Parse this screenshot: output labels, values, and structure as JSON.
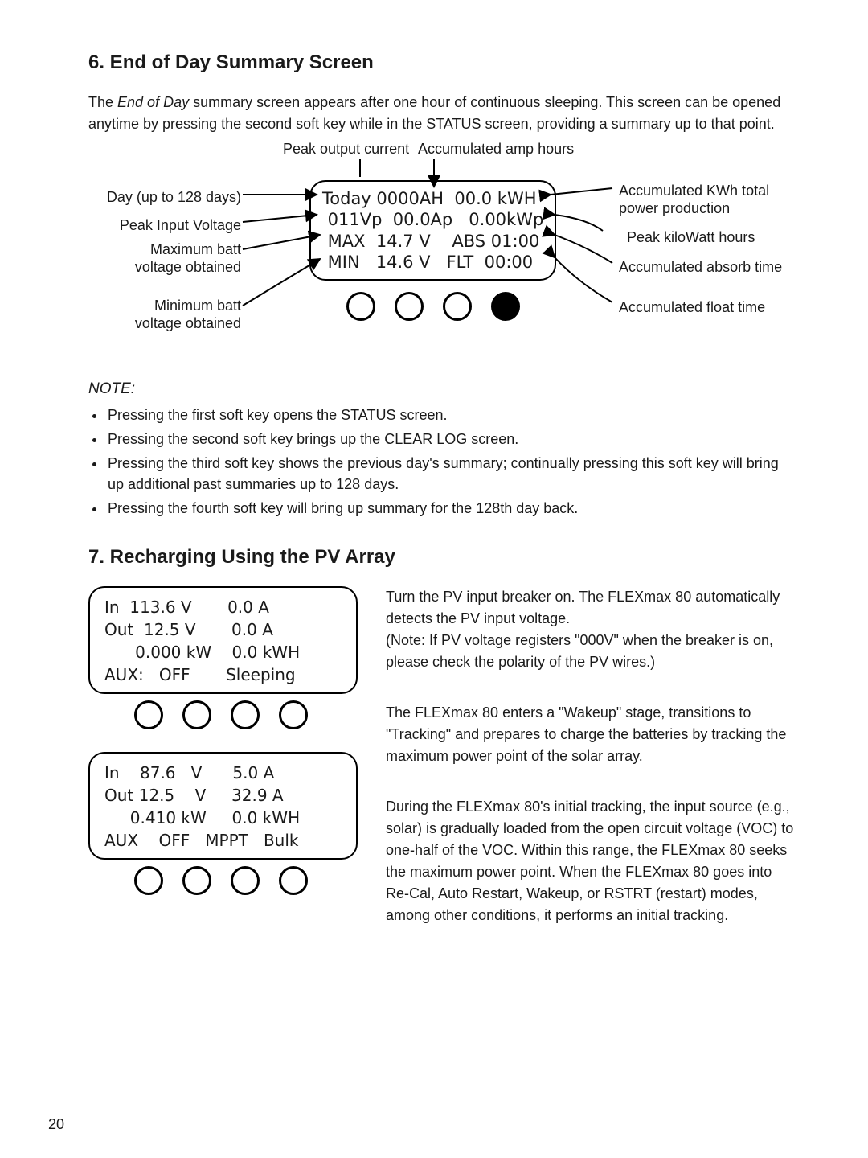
{
  "section6": {
    "title": "6. End of Day Summary Screen",
    "intro_html": "The <em>End of Day</em> summary screen appears after one hour of continuous sleeping. This screen can be opened anytime by pressing the second soft key while in the STATUS screen, providing a summary up to that point.",
    "top_labels": {
      "peak_output_current": "Peak output current",
      "accum_amp_hours": "Accumulated amp hours"
    },
    "lcd_lines": [
      "Today 0000AH  00.0 kWH",
      " 011Vp  00.0Ap   0.00kWp",
      " MAX  14.7 V    ABS 01:00",
      " MIN   14.6 V   FLT  00:00"
    ],
    "left_labels": {
      "day": "Day (up to 128 days)",
      "peak_input_v": "Peak Input Voltage",
      "max_batt": "Maximum batt",
      "max_batt2": "voltage obtained",
      "min_batt": "Minimum batt",
      "min_batt2": "voltage obtained"
    },
    "right_labels": {
      "acc_kwh": "Accumulated KWh total",
      "acc_kwh2": "power production",
      "peak_kw": "Peak kiloWatt hours",
      "acc_absorb": "Accumulated absorb time",
      "acc_float": "Accumulated float time"
    },
    "note_title": "NOTE:",
    "notes": [
      "Pressing the first soft key opens the STATUS screen.",
      "Pressing the second soft key brings up the CLEAR LOG screen.",
      "Pressing the third soft key shows the previous day's summary; continually pressing this soft key will bring up additional past summaries up to 128 days.",
      "Pressing the fourth soft key will bring up summary for the 128th day back."
    ]
  },
  "section7": {
    "title": "7. Recharging Using the PV Array",
    "lcd1": [
      "In  113.6 V       0.0 A  ",
      "Out  12.5 V       0.0 A  ",
      "      0.000 kW    0.0 kWH",
      "AUX:   OFF       Sleeping"
    ],
    "para1": "Turn the PV input breaker on. The FLEXmax 80 automatically detects the PV input voltage.\n(Note: If PV voltage registers \"000V\" when the breaker is on, please check the polarity of the PV wires.)",
    "para2": "The FLEXmax 80 enters a \"Wakeup\" stage, transitions to \"Tracking\" and prepares to charge the batteries by tracking the maximum power point of the solar array.",
    "lcd2": [
      "In    87.6   V      5.0 A",
      "Out 12.5    V     32.9 A ",
      "     0.410 kW     0.0 kWH",
      "AUX    OFF   MPPT   Bulk "
    ],
    "para3": "During the FLEXmax 80's initial tracking, the input source (e.g., solar) is gradually loaded from the open circuit voltage (VOC) to one-half of the VOC. Within this range, the FLEXmax 80 seeks the maximum power point. When the  FLEXmax 80 goes into Re-Cal, Auto Restart, Wakeup, or RSTRT (restart) modes, among other conditions, it performs an initial tracking."
  },
  "page_number": "20"
}
